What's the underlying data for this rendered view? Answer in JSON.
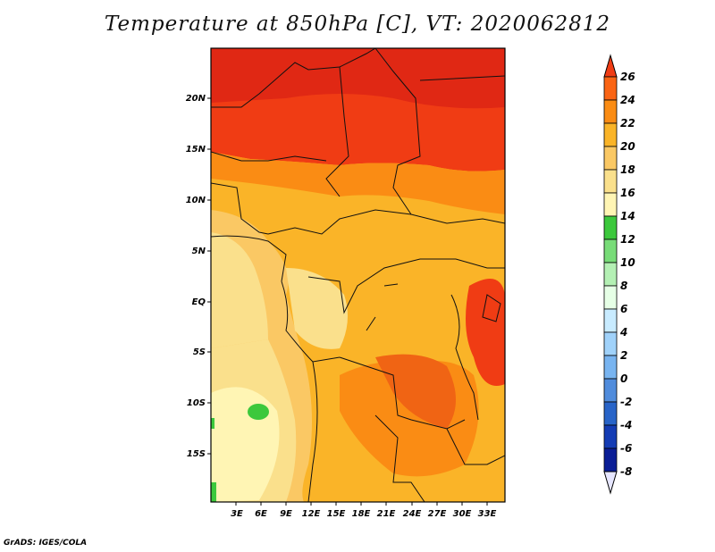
{
  "title": "Temperature at 850hPa [C], VT: 2020062812",
  "credit": "GrADS: IGES/COLA",
  "map": {
    "lat_labels": [
      "20N",
      "15N",
      "10N",
      "5N",
      "EQ",
      "5S",
      "10S",
      "15S"
    ],
    "lon_labels": [
      "3E",
      "6E",
      "9E",
      "12E",
      "15E",
      "18E",
      "21E",
      "24E",
      "27E",
      "30E",
      "33E"
    ]
  },
  "colorbar": {
    "labels": [
      "26",
      "24",
      "22",
      "20",
      "18",
      "16",
      "14",
      "12",
      "10",
      "8",
      "6",
      "4",
      "2",
      "0",
      "-2",
      "-4",
      "-6",
      "-8"
    ],
    "colors": [
      "#f03c14",
      "#fa6414",
      "#fa8c14",
      "#fab428",
      "#fac864",
      "#fae08c",
      "#fff5b4",
      "#3cc83c",
      "#78dc78",
      "#b4f0b4",
      "#e6ffe6",
      "#c8ebff",
      "#a0d2fa",
      "#78b4f0",
      "#508cdc",
      "#2864c8",
      "#143cb4",
      "#0a1e96",
      "#00005a",
      "#e6e6ff"
    ]
  }
}
